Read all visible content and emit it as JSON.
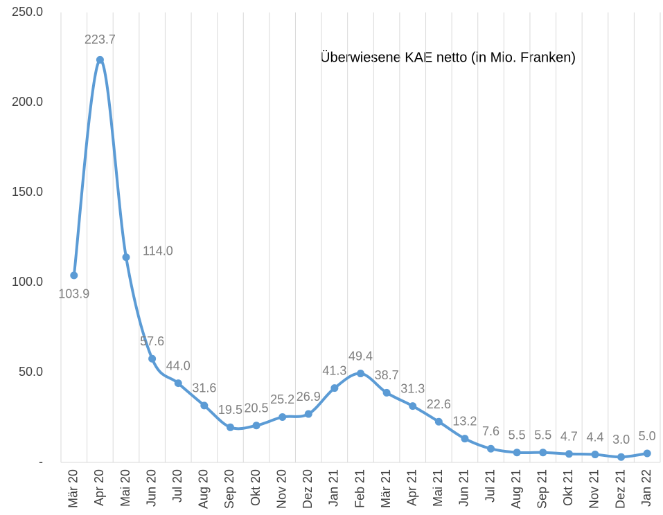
{
  "chart_data": {
    "type": "line",
    "annotation": "Überwiesene KAE netto (in Mio. Franken)",
    "categories": [
      "Mär 20",
      "Apr 20",
      "Mai 20",
      "Jun 20",
      "Jul 20",
      "Aug 20",
      "Sep 20",
      "Okt 20",
      "Nov 20",
      "Dez 20",
      "Jan 21",
      "Feb 21",
      "Mär 21",
      "Apr 21",
      "Mai 21",
      "Jun 21",
      "Jul 21",
      "Aug 21",
      "Sep 21",
      "Okt 21",
      "Nov 21",
      "Dez 21",
      "Jan 22"
    ],
    "values": [
      103.9,
      223.7,
      114.0,
      57.6,
      44.0,
      31.6,
      19.5,
      20.5,
      25.2,
      26.9,
      41.3,
      49.4,
      38.7,
      31.3,
      22.6,
      13.2,
      7.6,
      5.5,
      5.5,
      4.7,
      4.4,
      3.0,
      5.0
    ],
    "value_labels": [
      "103.9",
      "223.7",
      "114.0",
      "57.6",
      "44.0",
      "31.6",
      "19.5",
      "20.5",
      "25.2",
      "26.9",
      "41.3",
      "49.4",
      "38.7",
      "31.3",
      "22.6",
      "13.2",
      "7.6",
      "5.5",
      "5.5",
      "4.7",
      "4.4",
      "3.0",
      "5.0"
    ],
    "color": "#5b9bd5",
    "ylim": [
      0,
      250
    ],
    "yticks": [
      {
        "value": 0,
        "label": "-"
      },
      {
        "value": 50,
        "label": "50.0"
      },
      {
        "value": 100,
        "label": "100.0"
      },
      {
        "value": 150,
        "label": "150.0"
      },
      {
        "value": 200,
        "label": "200.0"
      },
      {
        "value": 250,
        "label": "250.0"
      }
    ],
    "grid": "x"
  }
}
